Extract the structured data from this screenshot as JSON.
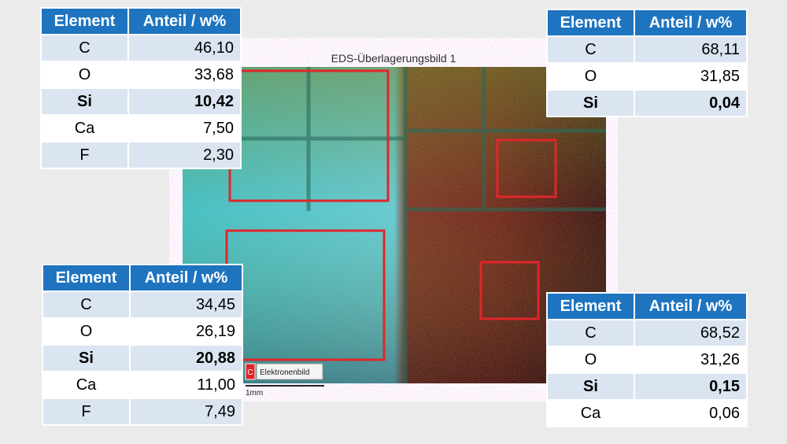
{
  "image": {
    "title": "EDS-Überlagerungsbild 1",
    "legend_icon": "C",
    "legend_label": "Elektronenbild",
    "scale": "1mm"
  },
  "tables": [
    {
      "header": [
        "Element",
        "Anteil / w%"
      ],
      "highlight_row": 2,
      "rows": [
        [
          "C",
          "46,10"
        ],
        [
          "O",
          "33,68"
        ],
        [
          "Si",
          "10,42"
        ],
        [
          "Ca",
          "7,50"
        ],
        [
          "F",
          "2,30"
        ]
      ]
    },
    {
      "header": [
        "Element",
        "Anteil / w%"
      ],
      "highlight_row": 2,
      "rows": [
        [
          "C",
          "68,11"
        ],
        [
          "O",
          "31,85"
        ],
        [
          "Si",
          "0,04"
        ]
      ]
    },
    {
      "header": [
        "Element",
        "Anteil / w%"
      ],
      "highlight_row": 2,
      "rows": [
        [
          "C",
          "34,45"
        ],
        [
          "O",
          "26,19"
        ],
        [
          "Si",
          "20,88"
        ],
        [
          "Ca",
          "11,00"
        ],
        [
          "F",
          "7,49"
        ]
      ]
    },
    {
      "header": [
        "Element",
        "Anteil / w%"
      ],
      "highlight_row": 2,
      "rows": [
        [
          "C",
          "68,52"
        ],
        [
          "O",
          "31,26"
        ],
        [
          "Si",
          "0,15"
        ],
        [
          "Ca",
          "0,06"
        ]
      ]
    }
  ]
}
